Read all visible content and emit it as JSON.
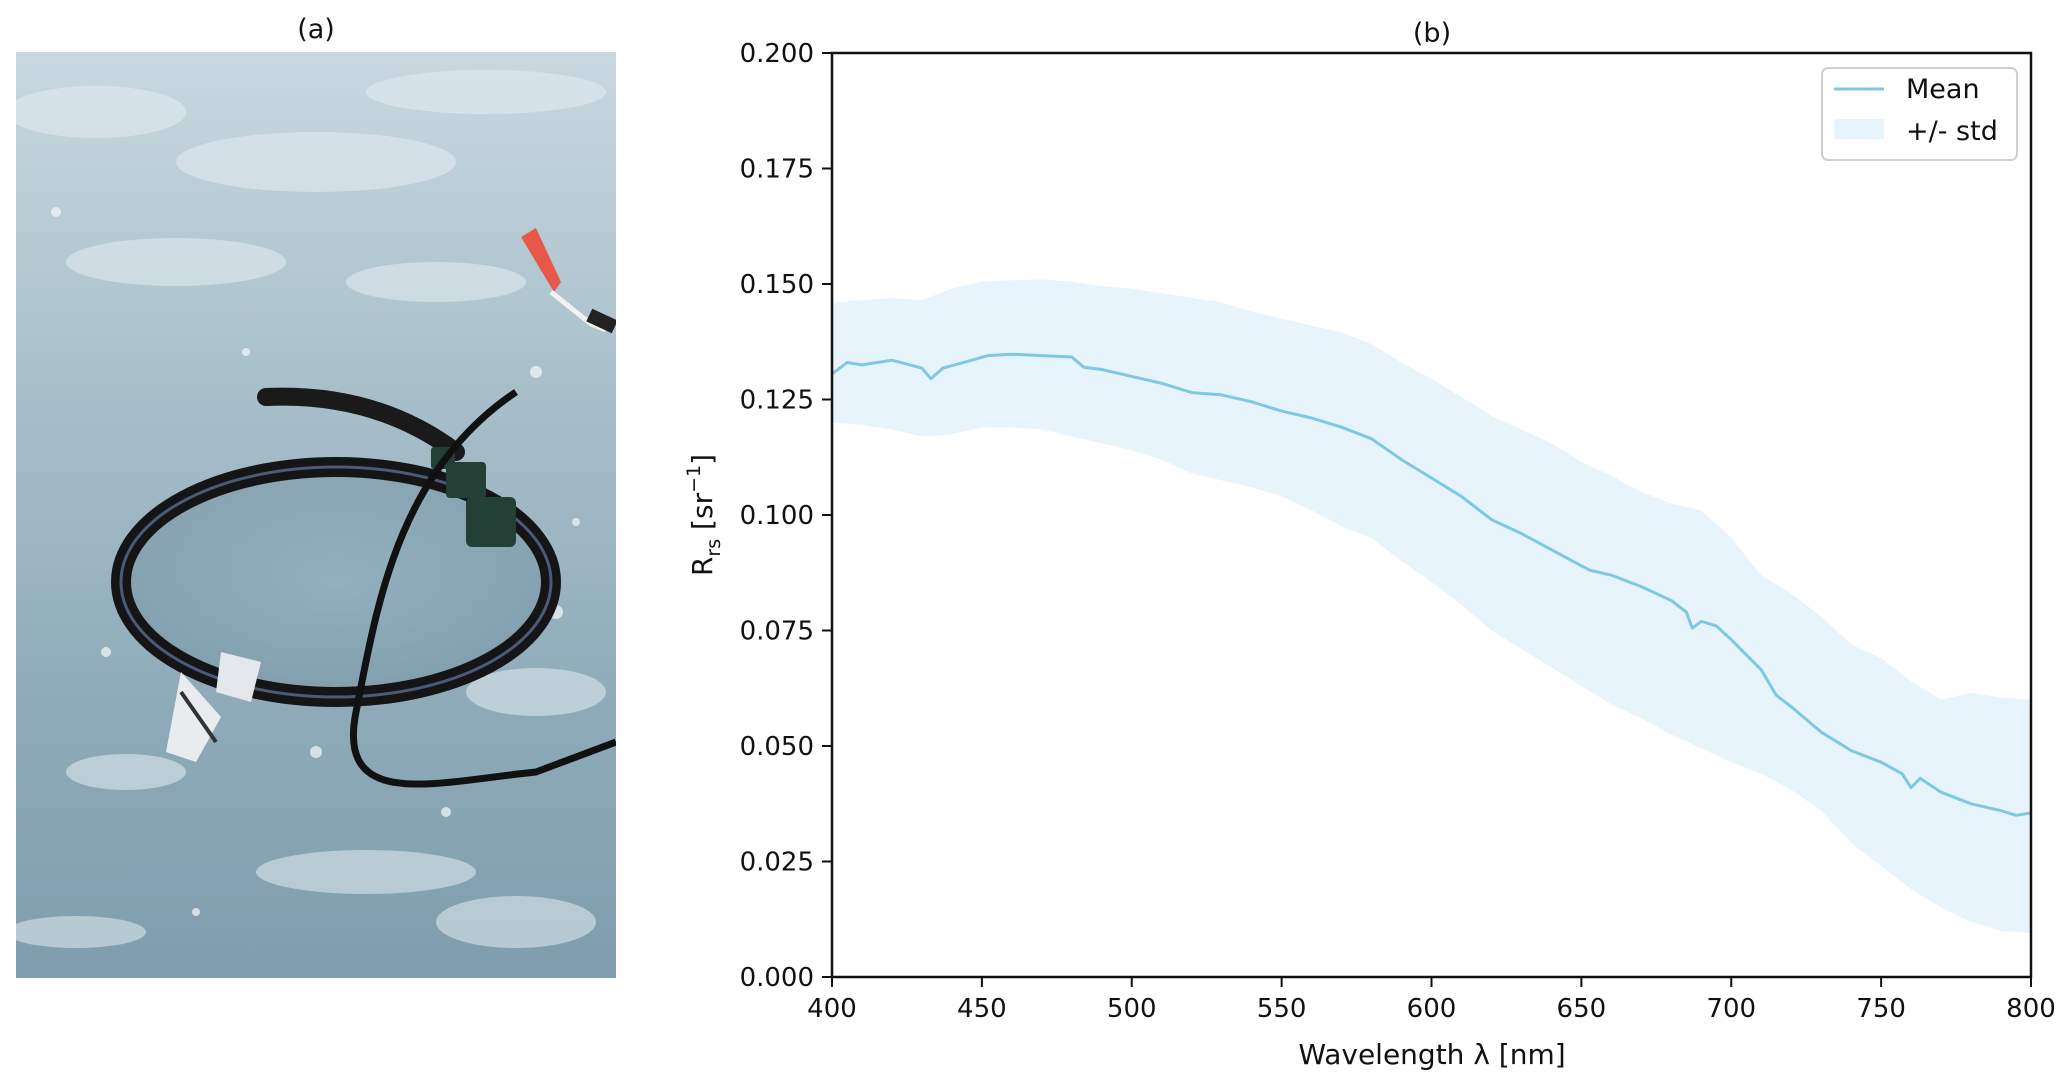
{
  "panels": {
    "left_label": "(a)",
    "right_label": "(b)"
  },
  "photo": {
    "subject": "ring-shaped radiometer frame with cable lying on sea ice, red flag in background"
  },
  "chart_data": {
    "type": "line",
    "title": "(b)",
    "xlabel": "Wavelength λ [nm]",
    "ylabel_main": "R",
    "ylabel_sub": "rs",
    "ylabel_unit_open": " [sr",
    "ylabel_unit_sup": "−1",
    "ylabel_unit_close": "]",
    "xlim": [
      400,
      800
    ],
    "ylim": [
      0.0,
      0.2
    ],
    "xticks": [
      "400",
      "450",
      "500",
      "550",
      "600",
      "650",
      "700",
      "750",
      "800"
    ],
    "yticks": [
      "0.000",
      "0.025",
      "0.050",
      "0.075",
      "0.100",
      "0.125",
      "0.150",
      "0.175",
      "0.200"
    ],
    "grid": false,
    "legend_position": "top-right",
    "series": [
      {
        "name": "Mean",
        "color": "#7ec8e3",
        "x": [
          400,
          405,
          410,
          420,
          430,
          433,
          437,
          445,
          452,
          460,
          470,
          480,
          484,
          490,
          500,
          510,
          520,
          530,
          540,
          550,
          560,
          570,
          580,
          590,
          600,
          610,
          620,
          630,
          640,
          650,
          653,
          660,
          670,
          680,
          685,
          687,
          690,
          695,
          700,
          710,
          715,
          720,
          730,
          740,
          750,
          757,
          760,
          763,
          770,
          780,
          790,
          795,
          800
        ],
        "y": [
          0.1305,
          0.133,
          0.1325,
          0.1335,
          0.1318,
          0.1295,
          0.1318,
          0.1332,
          0.1345,
          0.1348,
          0.1345,
          0.1342,
          0.132,
          0.1315,
          0.13,
          0.1285,
          0.1265,
          0.126,
          0.1245,
          0.1225,
          0.121,
          0.119,
          0.1165,
          0.112,
          0.108,
          0.104,
          0.099,
          0.096,
          0.0925,
          0.089,
          0.088,
          0.087,
          0.0845,
          0.0815,
          0.079,
          0.0755,
          0.077,
          0.076,
          0.073,
          0.0665,
          0.061,
          0.0585,
          0.053,
          0.049,
          0.0465,
          0.044,
          0.041,
          0.043,
          0.04,
          0.0375,
          0.036,
          0.035,
          0.0355
        ]
      },
      {
        "name": "+/- std",
        "color": "#e8f4fc",
        "x": [
          400,
          410,
          420,
          430,
          440,
          450,
          460,
          470,
          480,
          490,
          500,
          510,
          520,
          530,
          540,
          550,
          560,
          570,
          580,
          590,
          600,
          610,
          620,
          630,
          640,
          650,
          660,
          670,
          680,
          690,
          700,
          710,
          720,
          730,
          740,
          750,
          760,
          770,
          780,
          790,
          800
        ],
        "upper": [
          0.146,
          0.1465,
          0.147,
          0.1465,
          0.149,
          0.1505,
          0.1508,
          0.151,
          0.1505,
          0.1495,
          0.149,
          0.148,
          0.147,
          0.146,
          0.144,
          0.1425,
          0.141,
          0.1395,
          0.137,
          0.133,
          0.1295,
          0.1255,
          0.1215,
          0.1185,
          0.1155,
          0.1115,
          0.1085,
          0.105,
          0.1025,
          0.101,
          0.095,
          0.087,
          0.083,
          0.078,
          0.072,
          0.069,
          0.064,
          0.06,
          0.0615,
          0.0605,
          0.06
        ],
        "lower": [
          0.12,
          0.1195,
          0.1185,
          0.117,
          0.1175,
          0.119,
          0.119,
          0.1185,
          0.117,
          0.1155,
          0.114,
          0.112,
          0.109,
          0.1075,
          0.106,
          0.104,
          0.101,
          0.0975,
          0.095,
          0.09,
          0.0855,
          0.0805,
          0.075,
          0.071,
          0.067,
          0.063,
          0.059,
          0.056,
          0.0525,
          0.0495,
          0.0465,
          0.044,
          0.0405,
          0.036,
          0.029,
          0.024,
          0.019,
          0.015,
          0.012,
          0.01,
          0.0095
        ]
      }
    ],
    "legend": [
      {
        "label": "Mean",
        "kind": "line"
      },
      {
        "label": "+/- std",
        "kind": "patch"
      }
    ]
  },
  "colors": {
    "mean_line": "#7ec8e3",
    "std_fill": "#e8f4fc",
    "axis": "#111111",
    "ice_base": "#9bb5c1"
  }
}
